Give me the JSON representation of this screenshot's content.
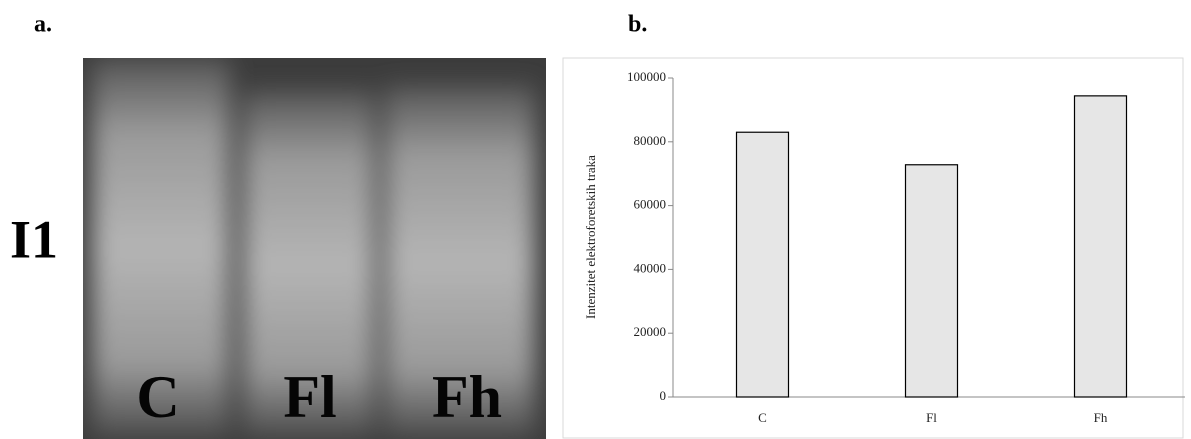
{
  "panel_a": {
    "label": "a.",
    "row_label": "I1",
    "lane_labels": [
      "C",
      "Fl",
      "Fh"
    ]
  },
  "panel_b": {
    "label": "b."
  },
  "chart_data": {
    "type": "bar",
    "y_label": "Intenzitet elektroforetskih traka",
    "categories": [
      "C",
      "Fl",
      "Fh"
    ],
    "values": [
      83000,
      72800,
      94400
    ],
    "color": "#e6e6e6",
    "ylim": [
      0,
      100000
    ],
    "yticks": [
      0,
      20000,
      40000,
      60000,
      80000,
      100000
    ],
    "grid": false
  }
}
